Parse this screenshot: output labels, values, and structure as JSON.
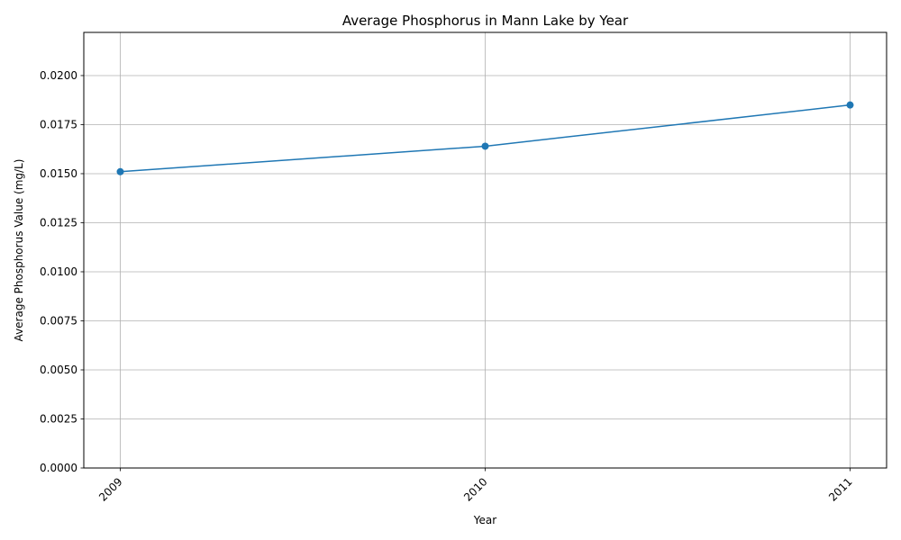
{
  "chart_data": {
    "type": "line",
    "title": "Average Phosphorus in Mann Lake by Year",
    "xlabel": "Year",
    "ylabel": "Average Phosphorus Value (mg/L)",
    "x": [
      "2009",
      "2010",
      "2011"
    ],
    "series": [
      {
        "values": [
          0.0151,
          0.0164,
          0.0185
        ],
        "color": "#1f77b4",
        "marker": "circle"
      }
    ],
    "ylim": [
      0,
      0.0222
    ],
    "yticks": [
      0,
      0.0025,
      0.005,
      0.0075,
      0.01,
      0.0125,
      0.015,
      0.0175,
      0.02
    ],
    "ytick_labels": [
      "0.0000",
      "0.0025",
      "0.0050",
      "0.0075",
      "0.0100",
      "0.0125",
      "0.0150",
      "0.0175",
      "0.0200"
    ],
    "grid": true,
    "x_tick_rotation": "45 degrees"
  }
}
